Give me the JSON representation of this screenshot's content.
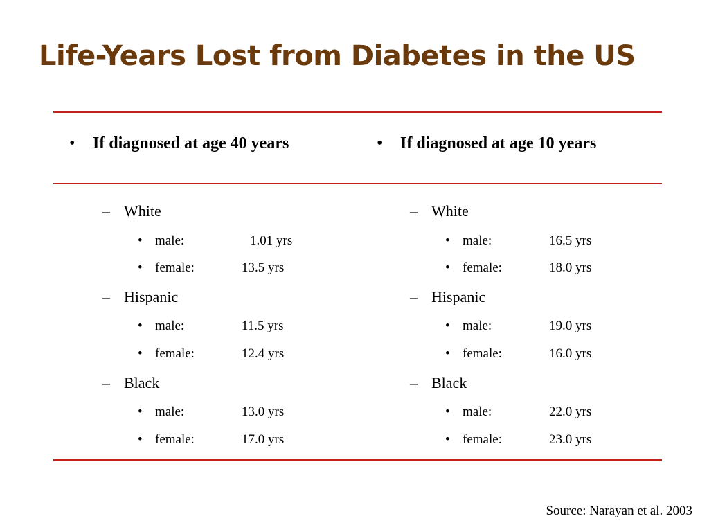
{
  "title": "Life-Years Lost from Diabetes in the US",
  "bullet_glyph": "•",
  "dash_glyph": "–",
  "columns": [
    {
      "heading": "If diagnosed at age 40 years",
      "groups": [
        {
          "label": "White",
          "entries": [
            {
              "sex": "male:",
              "value": "1.01 yrs"
            },
            {
              "sex": "female:",
              "value": "13.5 yrs"
            }
          ]
        },
        {
          "label": "Hispanic",
          "entries": [
            {
              "sex": "male:",
              "value": "11.5 yrs"
            },
            {
              "sex": "female:",
              "value": "12.4 yrs"
            }
          ]
        },
        {
          "label": "Black",
          "entries": [
            {
              "sex": "male:",
              "value": "13.0 yrs"
            },
            {
              "sex": "female:",
              "value": "17.0 yrs"
            }
          ]
        }
      ]
    },
    {
      "heading": "If diagnosed at age 10 years",
      "groups": [
        {
          "label": "White",
          "entries": [
            {
              "sex": "male:",
              "value": "16.5 yrs"
            },
            {
              "sex": "female:",
              "value": "18.0 yrs"
            }
          ]
        },
        {
          "label": "Hispanic",
          "entries": [
            {
              "sex": "male:",
              "value": "19.0 yrs"
            },
            {
              "sex": "female:",
              "value": "16.0 yrs"
            }
          ]
        },
        {
          "label": "Black",
          "entries": [
            {
              "sex": "male:",
              "value": "22.0 yrs"
            },
            {
              "sex": "female:",
              "value": "23.0 yrs"
            }
          ]
        }
      ]
    }
  ],
  "source": "Source: Narayan et al. 2003",
  "colors": {
    "title": "#6b3a0c",
    "rules": "#c4201c",
    "text": "#000000",
    "background": "#ffffff"
  }
}
